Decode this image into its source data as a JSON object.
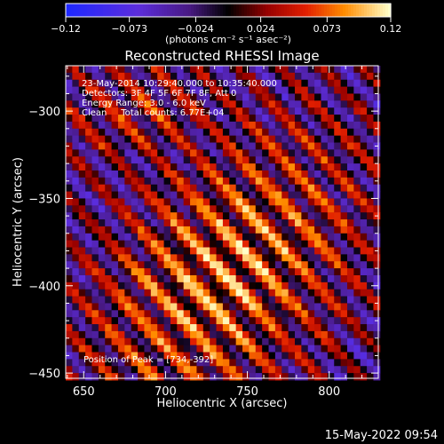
{
  "colorbar": {
    "tick_labels": [
      "-0.12",
      "-0.073",
      "-0.024",
      "0.024",
      "0.073",
      "0.12"
    ],
    "range": [
      -0.12,
      0.12
    ],
    "unit_label": "(photons cm⁻² s⁻¹ asec⁻²)"
  },
  "footer": {
    "timestamp": "15-May-2022 09:54"
  },
  "chart_data": {
    "type": "heatmap",
    "title": "Reconstructed RHESSI Image",
    "xlabel": "Heliocentric X (arcsec)",
    "ylabel": "Heliocentric Y (arcsec)",
    "xlim": [
      639,
      830
    ],
    "ylim": [
      -453,
      -274
    ],
    "x_ticks": [
      650,
      700,
      750,
      800
    ],
    "y_ticks": [
      -300,
      -350,
      -400,
      -450
    ],
    "x_tick_labels": [
      "650",
      "700",
      "750",
      "800"
    ],
    "y_tick_labels": [
      "−300",
      "−350",
      "−400",
      "−450"
    ],
    "annotations": [
      "23-May-2014 10:29:40.000 to 10:35:40.000",
      "Detectors: 3F 4F 5F 6F 7F 8F, Att 0",
      "Energy Range: 3.0 - 6.0 keV",
      "Clean     Total counts: 6.77E+04"
    ],
    "peak_label": "Position of Peak = [734,-392]",
    "peak": [
      734,
      -392
    ],
    "pixel_size_arcsec": 4,
    "stripe_period_arcsec": 18,
    "stripe_angle_deg": 45
  }
}
